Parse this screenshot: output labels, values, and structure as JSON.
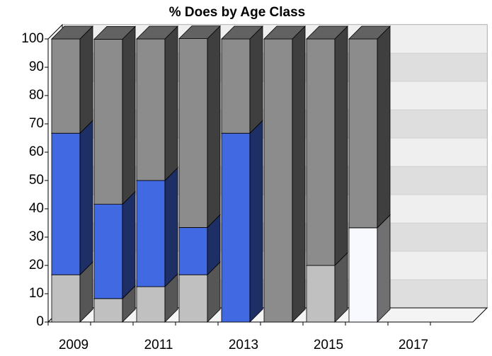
{
  "chart_data": {
    "type": "bar3d_stacked",
    "title": "% Does by Age Class",
    "categories": [
      "2009",
      null,
      "2011",
      null,
      "2013",
      null,
      "2015",
      null,
      "2017",
      null
    ],
    "series": [
      {
        "color": "#f8f8ff",
        "values": [
          0,
          0,
          0,
          0,
          0,
          0,
          0,
          33.3,
          null,
          null
        ]
      },
      {
        "color": "#c0c0c0",
        "values": [
          16.7,
          8.3,
          12.5,
          16.7,
          0,
          0,
          20,
          0,
          null,
          null
        ]
      },
      {
        "color": "#4169e1",
        "values": [
          50,
          33.3,
          37.5,
          16.7,
          66.7,
          0,
          0,
          0,
          null,
          null
        ]
      },
      {
        "color": "#8c8c8c",
        "values": [
          33.3,
          58.3,
          50,
          66.7,
          33.3,
          100,
          80,
          66.7,
          null,
          null
        ]
      }
    ],
    "ylim": [
      0,
      100
    ],
    "yticks": [
      0,
      10,
      20,
      30,
      40,
      50,
      60,
      70,
      80,
      90,
      100
    ],
    "grid": true
  }
}
